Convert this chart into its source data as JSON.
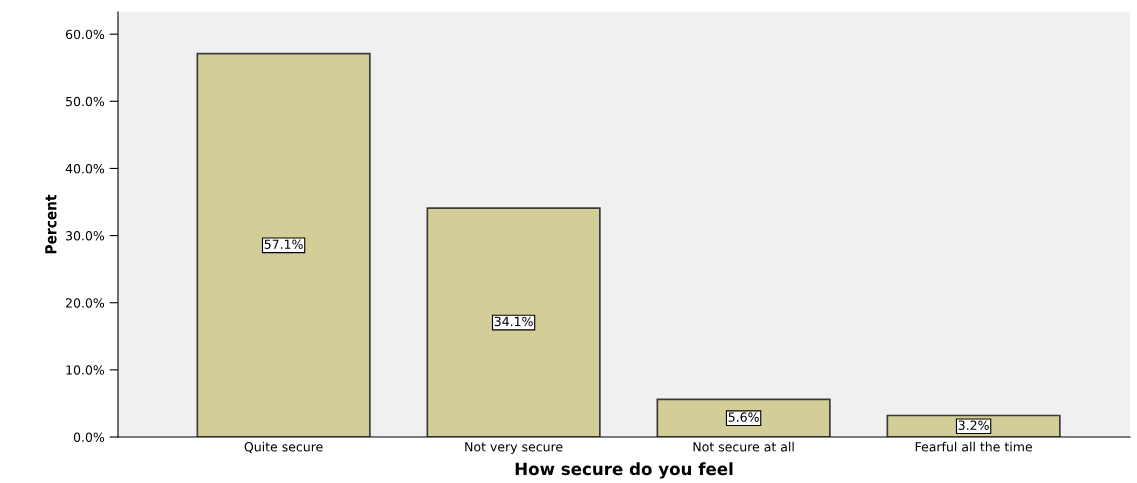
{
  "chart_data": {
    "type": "bar",
    "xlabel": "How secure do you feel",
    "ylabel": "Percent",
    "categories": [
      "Quite secure",
      "Not very secure",
      "Not secure at all",
      "Fearful all the time"
    ],
    "values": [
      57.1,
      34.1,
      5.6,
      3.2
    ],
    "color": "#d3ce98",
    "value_labels": [
      "57.1%",
      "34.1%",
      "5.6%",
      "3.2%"
    ],
    "ylim": [
      0,
      63.3
    ],
    "yticks": [
      {
        "value": 0,
        "label": "0.0%"
      },
      {
        "value": 10,
        "label": "10.0%"
      },
      {
        "value": 20,
        "label": "20.0%"
      },
      {
        "value": 30,
        "label": "30.0%"
      },
      {
        "value": 40,
        "label": "40.0%"
      },
      {
        "value": 50,
        "label": "50.0%"
      },
      {
        "value": 60,
        "label": "60.0%"
      }
    ],
    "grid": false
  }
}
